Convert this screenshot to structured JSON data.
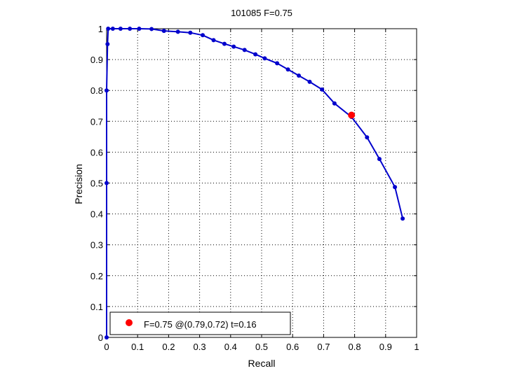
{
  "chart_data": {
    "type": "line",
    "title": "101085 F=0.75",
    "xlabel": "Recall",
    "ylabel": "Precision",
    "xlim": [
      0,
      1
    ],
    "ylim": [
      0,
      1
    ],
    "grid": true,
    "xticks": [
      "0",
      "0.1",
      "0.2",
      "0.3",
      "0.4",
      "0.5",
      "0.6",
      "0.7",
      "0.8",
      "0.9",
      "1"
    ],
    "yticks": [
      "0",
      "0.1",
      "0.2",
      "0.3",
      "0.4",
      "0.5",
      "0.6",
      "0.7",
      "0.8",
      "0.9",
      "1"
    ],
    "series": [
      {
        "color": "#0000cc",
        "x": [
          0.0,
          0.0,
          0.0,
          0.003,
          0.005,
          0.02,
          0.045,
          0.075,
          0.105,
          0.145,
          0.185,
          0.23,
          0.27,
          0.31,
          0.345,
          0.38,
          0.41,
          0.445,
          0.48,
          0.51,
          0.55,
          0.585,
          0.62,
          0.655,
          0.695,
          0.735,
          0.79,
          0.84,
          0.88,
          0.93,
          0.955
        ],
        "y": [
          0.0,
          0.5,
          0.8,
          0.95,
          1.0,
          1.0,
          1.0,
          1.0,
          1.0,
          0.999,
          0.993,
          0.99,
          0.987,
          0.979,
          0.963,
          0.951,
          0.942,
          0.931,
          0.917,
          0.904,
          0.888,
          0.868,
          0.848,
          0.828,
          0.803,
          0.758,
          0.714,
          0.648,
          0.578,
          0.487,
          0.385
        ]
      }
    ],
    "highlight": {
      "x": 0.79,
      "y": 0.72,
      "color": "#ff0000"
    },
    "legend": {
      "position": "bottom-left",
      "text": "F=0.75 @(0.79,0.72) t=0.16",
      "marker_color": "#ff0000"
    }
  }
}
